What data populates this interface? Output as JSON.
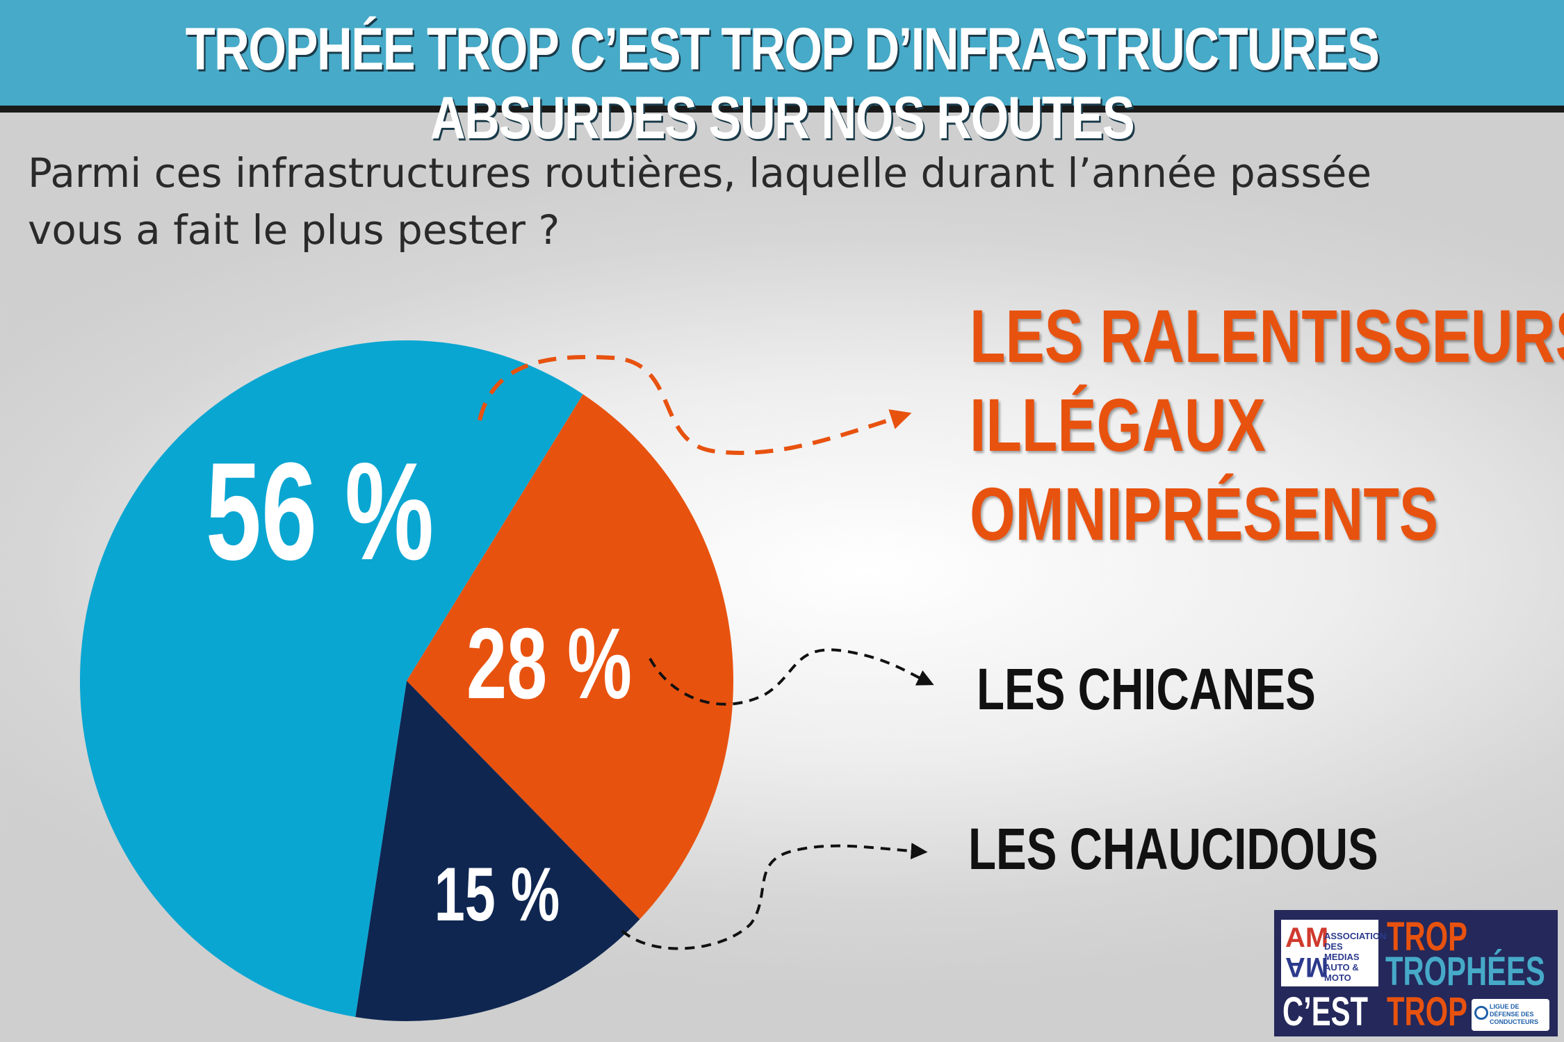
{
  "header": {
    "title": "TROPHÉE TROP C’EST TROP D’INFRASTRUCTURES ABSURDES SUR NOS ROUTES"
  },
  "question": {
    "line1": "Parmi ces infrastructures routières, laquelle durant l’année passée",
    "line2": "vous a fait le plus pester ?"
  },
  "chart_data": {
    "type": "pie",
    "title": "",
    "slices": [
      {
        "value": 56,
        "label": "56 %",
        "category": [
          "LES RALENTISSEURS",
          "ILLÉGAUX",
          "OMNIPRÉSENTS"
        ],
        "color": "#0aa6d2"
      },
      {
        "value": 28,
        "label": "28 %",
        "category": [
          "LES CHICANES"
        ],
        "color": "#e8520f"
      },
      {
        "value": 15,
        "label": "15 %",
        "category": [
          "LES CHAUCIDOUS"
        ],
        "color": "#0f2651"
      }
    ]
  },
  "logo": {
    "am": "AM",
    "association": "ASSOCIATION DES MEDIAS AUTO & MOTO",
    "trop1": "TROP",
    "trophees": "TROPHÉES",
    "cest": "C’EST",
    "trop2": "TROP",
    "badge": "LIGUE DE DÉFENSE DES CONDUCTEURS"
  },
  "colors": {
    "header": "#46aac8",
    "accent_orange": "#e8520f",
    "cyan": "#0aa6d2",
    "navy": "#0f2651"
  }
}
